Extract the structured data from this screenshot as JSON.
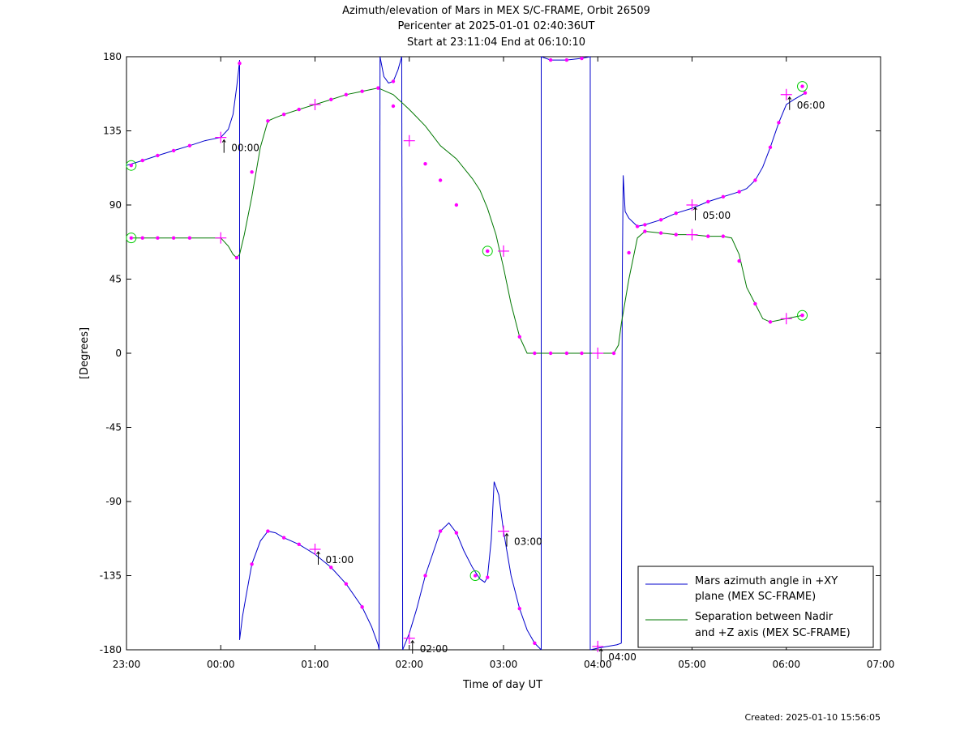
{
  "title_lines": [
    "Azimuth/elevation of Mars in MEX S/C-FRAME,  Orbit 26509",
    "Pericenter at 2025-01-01 02:40:36UT",
    "Start at 23:11:04 End at 06:10:10"
  ],
  "created": "Created: 2025-01-10 15:56:05",
  "colors": {
    "azimuth": "#0000cc",
    "separation": "#007700",
    "marker": "#ff00ff",
    "circle": "#00cc00"
  },
  "chart_data": {
    "type": "line",
    "xlabel": "Time of day UT",
    "ylabel": "[Degrees]",
    "xlim": [
      0,
      8
    ],
    "ylim": [
      -180,
      180
    ],
    "x_ticks": [
      {
        "v": 0,
        "label": "23:00"
      },
      {
        "v": 1,
        "label": "00:00"
      },
      {
        "v": 2,
        "label": "01:00"
      },
      {
        "v": 3,
        "label": "02:00"
      },
      {
        "v": 4,
        "label": "03:00"
      },
      {
        "v": 5,
        "label": "04:00"
      },
      {
        "v": 6,
        "label": "05:00"
      },
      {
        "v": 7,
        "label": "06:00"
      },
      {
        "v": 8,
        "label": "07:00"
      }
    ],
    "y_ticks": [
      {
        "v": 180,
        "label": "180"
      },
      {
        "v": 135,
        "label": "135"
      },
      {
        "v": 90,
        "label": "90"
      },
      {
        "v": 45,
        "label": "45"
      },
      {
        "v": 0,
        "label": "0"
      },
      {
        "v": -45,
        "label": "-45"
      },
      {
        "v": -90,
        "label": "-90"
      },
      {
        "v": -135,
        "label": "-135"
      },
      {
        "v": -180,
        "label": "-180"
      }
    ],
    "legend": {
      "placement": "bottom-right",
      "entries": [
        {
          "key": "azimuth",
          "lines": [
            "Mars azimuth angle in +XY",
            "plane (MEX SC-FRAME)"
          ]
        },
        {
          "key": "separation",
          "lines": [
            "Separation between Nadir",
            "and +Z axis (MEX SC-FRAME)"
          ]
        }
      ]
    },
    "series": [
      {
        "key": "azimuth",
        "segments": [
          [
            [
              0.0,
              114
            ],
            [
              0.17,
              117
            ],
            [
              0.33,
              120
            ],
            [
              0.5,
              123
            ],
            [
              0.67,
              126
            ],
            [
              0.83,
              129
            ],
            [
              1.0,
              131
            ],
            [
              1.08,
              136
            ],
            [
              1.13,
              145
            ],
            [
              1.17,
              162
            ],
            [
              1.19,
              172
            ],
            [
              1.2,
              178
            ]
          ],
          [
            [
              1.2,
              -174
            ],
            [
              1.23,
              -160
            ],
            [
              1.27,
              -147
            ],
            [
              1.33,
              -128
            ],
            [
              1.42,
              -114
            ],
            [
              1.5,
              -108
            ],
            [
              1.58,
              -109
            ],
            [
              1.67,
              -112
            ],
            [
              1.83,
              -116
            ],
            [
              2.0,
              -122
            ],
            [
              2.17,
              -130
            ],
            [
              2.33,
              -140
            ],
            [
              2.5,
              -154
            ],
            [
              2.6,
              -166
            ],
            [
              2.67,
              -177
            ],
            [
              2.68,
              -180
            ]
          ],
          [
            [
              2.69,
              180
            ],
            [
              2.73,
              168
            ],
            [
              2.78,
              164
            ],
            [
              2.83,
              165
            ],
            [
              2.88,
              172
            ],
            [
              2.92,
              180
            ]
          ],
          [
            [
              2.93,
              -180
            ],
            [
              3.0,
              -170
            ],
            [
              3.08,
              -155
            ],
            [
              3.17,
              -135
            ],
            [
              3.33,
              -108
            ],
            [
              3.42,
              -103
            ],
            [
              3.5,
              -109
            ],
            [
              3.58,
              -120
            ],
            [
              3.67,
              -130
            ],
            [
              3.75,
              -137
            ],
            [
              3.8,
              -139
            ],
            [
              3.83,
              -136
            ],
            [
              3.87,
              -113
            ],
            [
              3.9,
              -78
            ],
            [
              3.95,
              -86
            ],
            [
              4.0,
              -108
            ],
            [
              4.08,
              -135
            ],
            [
              4.17,
              -155
            ],
            [
              4.25,
              -168
            ],
            [
              4.33,
              -176
            ],
            [
              4.4,
              -180
            ]
          ],
          [
            [
              4.4,
              180
            ],
            [
              4.5,
              178
            ],
            [
              4.67,
              178
            ],
            [
              4.83,
              179
            ],
            [
              4.92,
              180
            ]
          ],
          [
            [
              4.92,
              -180
            ],
            [
              5.0,
              -179
            ],
            [
              5.1,
              -178
            ],
            [
              5.2,
              -177
            ],
            [
              5.25,
              -176
            ]
          ],
          [
            [
              5.25,
              -176
            ],
            [
              5.26,
              50
            ],
            [
              5.27,
              108
            ],
            [
              5.29,
              86
            ],
            [
              5.33,
              82
            ],
            [
              5.42,
              77
            ],
            [
              5.5,
              78
            ],
            [
              5.67,
              81
            ],
            [
              5.83,
              85
            ],
            [
              6.0,
              88
            ],
            [
              6.17,
              92
            ],
            [
              6.33,
              95
            ],
            [
              6.5,
              98
            ],
            [
              6.58,
              100
            ],
            [
              6.67,
              105
            ],
            [
              6.75,
              113
            ],
            [
              6.83,
              125
            ],
            [
              6.92,
              140
            ],
            [
              7.0,
              151
            ],
            [
              7.08,
              154
            ],
            [
              7.17,
              157
            ],
            [
              7.2,
              158
            ]
          ]
        ],
        "markers": [
          [
            0.17,
            117
          ],
          [
            0.33,
            120
          ],
          [
            0.5,
            123
          ],
          [
            0.67,
            126
          ],
          [
            1.2,
            176
          ],
          [
            1.33,
            -128
          ],
          [
            1.5,
            -108
          ],
          [
            1.67,
            -112
          ],
          [
            1.83,
            -116
          ],
          [
            2.17,
            -130
          ],
          [
            2.33,
            -140
          ],
          [
            2.5,
            -154
          ],
          [
            2.83,
            165
          ],
          [
            3.17,
            -135
          ],
          [
            3.33,
            -108
          ],
          [
            3.5,
            -109
          ],
          [
            3.83,
            -136
          ],
          [
            4.17,
            -155
          ],
          [
            4.33,
            -176
          ],
          [
            4.5,
            178
          ],
          [
            4.67,
            178
          ],
          [
            4.83,
            179
          ],
          [
            5.42,
            77
          ],
          [
            5.5,
            78
          ],
          [
            5.67,
            81
          ],
          [
            5.83,
            85
          ],
          [
            6.17,
            92
          ],
          [
            6.33,
            95
          ],
          [
            6.5,
            98
          ],
          [
            6.67,
            105
          ],
          [
            6.83,
            125
          ],
          [
            6.92,
            140
          ],
          [
            7.2,
            158
          ]
        ],
        "hour_crosses": [
          [
            1.0,
            131
          ],
          [
            2.0,
            -119
          ],
          [
            3.0,
            -173
          ],
          [
            4.0,
            -108
          ],
          [
            5.0,
            -178
          ],
          [
            6.0,
            90
          ],
          [
            7.0,
            157
          ]
        ],
        "start_circle": [
          0.05,
          114
        ]
      },
      {
        "key": "separation",
        "segments": [
          [
            [
              0.05,
              70
            ],
            [
              0.17,
              70
            ],
            [
              0.33,
              70
            ],
            [
              0.5,
              70
            ],
            [
              0.67,
              70
            ],
            [
              0.83,
              70
            ],
            [
              1.0,
              70
            ],
            [
              1.08,
              65
            ],
            [
              1.13,
              60
            ],
            [
              1.17,
              58
            ],
            [
              1.2,
              60
            ],
            [
              1.25,
              72
            ],
            [
              1.33,
              95
            ],
            [
              1.42,
              125
            ],
            [
              1.5,
              141
            ],
            [
              1.58,
              143
            ],
            [
              1.67,
              145
            ],
            [
              1.83,
              148
            ],
            [
              2.0,
              151
            ],
            [
              2.17,
              154
            ],
            [
              2.33,
              157
            ],
            [
              2.5,
              159
            ],
            [
              2.67,
              161
            ],
            [
              2.83,
              157
            ],
            [
              3.0,
              148
            ],
            [
              3.17,
              138
            ],
            [
              3.33,
              126
            ],
            [
              3.5,
              118
            ],
            [
              3.67,
              106
            ],
            [
              3.75,
              99
            ],
            [
              3.83,
              88
            ],
            [
              3.92,
              72
            ],
            [
              4.0,
              52
            ],
            [
              4.08,
              30
            ],
            [
              4.17,
              10
            ],
            [
              4.25,
              0
            ],
            [
              4.33,
              0
            ],
            [
              4.5,
              0
            ],
            [
              4.67,
              0
            ],
            [
              4.83,
              0
            ],
            [
              5.0,
              0
            ],
            [
              5.17,
              0
            ],
            [
              5.22,
              5
            ],
            [
              5.25,
              18
            ],
            [
              5.33,
              45
            ],
            [
              5.42,
              70
            ],
            [
              5.5,
              74
            ],
            [
              5.67,
              73
            ],
            [
              5.83,
              72
            ],
            [
              6.0,
              72
            ],
            [
              6.17,
              71
            ],
            [
              6.33,
              71
            ],
            [
              6.42,
              70
            ],
            [
              6.5,
              60
            ],
            [
              6.58,
              40
            ],
            [
              6.67,
              30
            ],
            [
              6.75,
              21
            ],
            [
              6.83,
              19
            ],
            [
              7.0,
              21
            ],
            [
              7.17,
              23
            ]
          ]
        ],
        "markers": [
          [
            0.17,
            70
          ],
          [
            0.33,
            70
          ],
          [
            0.5,
            70
          ],
          [
            0.67,
            70
          ],
          [
            1.17,
            58
          ],
          [
            1.33,
            110
          ],
          [
            1.5,
            141
          ],
          [
            1.67,
            145
          ],
          [
            1.83,
            148
          ],
          [
            2.17,
            154
          ],
          [
            2.33,
            157
          ],
          [
            2.5,
            159
          ],
          [
            2.67,
            161
          ],
          [
            2.83,
            150
          ],
          [
            3.17,
            115
          ],
          [
            3.33,
            105
          ],
          [
            3.5,
            90
          ],
          [
            3.83,
            62
          ],
          [
            4.17,
            10
          ],
          [
            4.33,
            0
          ],
          [
            4.5,
            0
          ],
          [
            4.67,
            0
          ],
          [
            4.83,
            0
          ],
          [
            5.17,
            0
          ],
          [
            5.33,
            61
          ],
          [
            5.5,
            74
          ],
          [
            5.67,
            73
          ],
          [
            5.83,
            72
          ],
          [
            6.17,
            71
          ],
          [
            6.33,
            71
          ],
          [
            6.5,
            56
          ],
          [
            6.67,
            30
          ],
          [
            6.83,
            19
          ],
          [
            7.17,
            23
          ]
        ],
        "hour_crosses": [
          [
            1.0,
            70
          ],
          [
            2.0,
            151
          ],
          [
            3.0,
            129
          ],
          [
            4.0,
            62
          ],
          [
            5.0,
            0
          ],
          [
            6.0,
            72
          ],
          [
            7.0,
            21
          ]
        ],
        "start_circle": [
          0.05,
          70
        ],
        "mid_circle": [
          3.83,
          62
        ],
        "end_circle": [
          7.17,
          23
        ]
      }
    ],
    "extra_circles": [
      [
        3.7,
        -135
      ],
      [
        7.17,
        162
      ]
    ],
    "hour_annotations": [
      {
        "x": 1.0,
        "y": 131,
        "label": "00:00"
      },
      {
        "x": 2.0,
        "y": -119,
        "label": "01:00"
      },
      {
        "x": 3.0,
        "y": -173,
        "label": "02:00"
      },
      {
        "x": 4.0,
        "y": -108,
        "label": "03:00"
      },
      {
        "x": 5.0,
        "y": -178,
        "label": "04:00"
      },
      {
        "x": 6.0,
        "y": 90,
        "label": "05:00"
      },
      {
        "x": 7.0,
        "y": 157,
        "label": "06:00"
      }
    ]
  }
}
